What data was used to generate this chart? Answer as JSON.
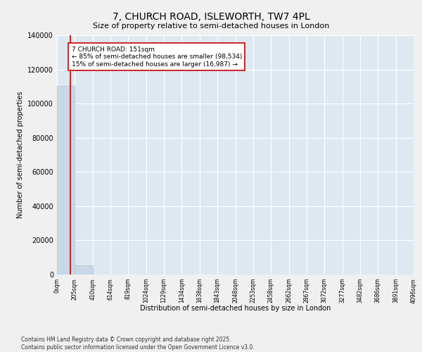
{
  "title": "7, CHURCH ROAD, ISLEWORTH, TW7 4PL",
  "subtitle": "Size of property relative to semi-detached houses in London",
  "xlabel": "Distribution of semi-detached houses by size in London",
  "ylabel": "Number of semi-detached properties",
  "property_size": 151,
  "property_label": "7 CHURCH ROAD: 151sqm",
  "pct_smaller": 85,
  "count_smaller": 98534,
  "pct_larger": 15,
  "count_larger": 16987,
  "bar_color": "#c8d8e8",
  "bar_edge_color": "#a0b8d0",
  "vline_color": "#cc0000",
  "annotation_box_color": "#cc0000",
  "background_color": "#dde8f0",
  "grid_color": "#ffffff",
  "fig_background": "#f0f0f0",
  "bins": [
    0,
    205,
    410,
    614,
    819,
    1024,
    1229,
    1434,
    1638,
    1843,
    2048,
    2253,
    2458,
    2662,
    2867,
    3072,
    3277,
    3482,
    3686,
    3891,
    4096
  ],
  "bin_labels": [
    "0sqm",
    "205sqm",
    "410sqm",
    "614sqm",
    "819sqm",
    "1024sqm",
    "1229sqm",
    "1434sqm",
    "1638sqm",
    "1843sqm",
    "2048sqm",
    "2253sqm",
    "2458sqm",
    "2662sqm",
    "2867sqm",
    "3072sqm",
    "3277sqm",
    "3482sqm",
    "3686sqm",
    "3891sqm",
    "4096sqm"
  ],
  "bar_heights": [
    110500,
    5200,
    200,
    60,
    20,
    10,
    5,
    3,
    2,
    1,
    1,
    1,
    0,
    0,
    0,
    0,
    0,
    0,
    0,
    0
  ],
  "ylim": [
    0,
    140000
  ],
  "yticks": [
    0,
    20000,
    40000,
    60000,
    80000,
    100000,
    120000,
    140000
  ],
  "footer_line1": "Contains HM Land Registry data © Crown copyright and database right 2025.",
  "footer_line2": "Contains public sector information licensed under the Open Government Licence v3.0."
}
